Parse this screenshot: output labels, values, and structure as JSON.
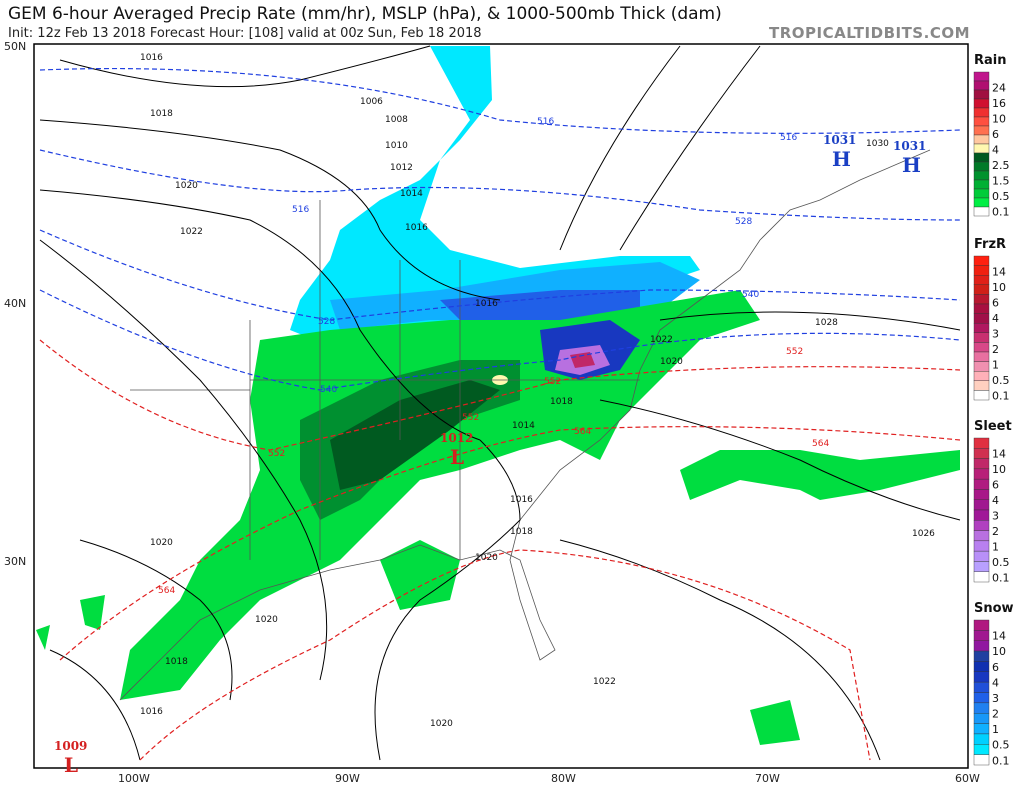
{
  "header": {
    "title": "GEM 6-hour Averaged Precip Rate (mm/hr), MSLP (hPa), & 1000-500mb Thick (dam)",
    "subtitle": "Init: 12z Feb 13 2018   Forecast Hour: [108]   valid at 00z Sun, Feb 18 2018",
    "brand": "TROPICALTIDBITS.COM"
  },
  "axes": {
    "lat": [
      "50N",
      "40N",
      "30N"
    ],
    "lon": [
      "100W",
      "90W",
      "80W",
      "70W",
      "60W"
    ]
  },
  "isobars": [
    "1016",
    "1018",
    "1020",
    "1022",
    "1006",
    "1008",
    "1010",
    "1012",
    "1014",
    "1016",
    "1016",
    "1018",
    "1016",
    "1018",
    "1020",
    "1020",
    "1022",
    "1020",
    "1028",
    "1030",
    "1026",
    "1022",
    "1020",
    "1016",
    "1018",
    "1020",
    "1014"
  ],
  "thickness": [
    "516",
    "516",
    "516",
    "528",
    "528",
    "540",
    "540",
    "552",
    "552",
    "564",
    "564",
    "564",
    "552",
    "552"
  ],
  "centers": [
    {
      "type": "H",
      "value": "1031"
    },
    {
      "type": "H",
      "value": "1031"
    },
    {
      "type": "L",
      "value": "1012"
    },
    {
      "type": "L",
      "value": "1009"
    }
  ],
  "colors": {
    "high": "#1a3fc4",
    "low": "#d42020",
    "isobar": "#000000",
    "thickness_cold": "#1f3fe0",
    "thickness_warm": "#e02020"
  },
  "legends": [
    {
      "title": "Rain",
      "labels": [
        "24",
        "16",
        "10",
        "6",
        "4",
        "2.5",
        "1.5",
        "0.5",
        "0.1"
      ],
      "colors": [
        "#c0168c",
        "#b01070",
        "#a01040",
        "#d01030",
        "#f03030",
        "#ff5040",
        "#ff7050",
        "#ffc8a0",
        "#fff8b0",
        "#005a20",
        "#007a28",
        "#00922e",
        "#00b034",
        "#00cc3a",
        "#00ee44",
        "#ffffff"
      ]
    },
    {
      "title": "FrzR",
      "labels": [
        "14",
        "10",
        "6",
        "4",
        "3",
        "2",
        "1",
        "0.5",
        "0.1"
      ],
      "colors": [
        "#ff2010",
        "#f02010",
        "#e02018",
        "#d02018",
        "#b81830",
        "#a81040",
        "#a01048",
        "#b01860",
        "#c83070",
        "#d84888",
        "#e870a0",
        "#f090b0",
        "#ffb0b8",
        "#ffd0c0",
        "#ffffff"
      ]
    },
    {
      "title": "Sleet",
      "labels": [
        "14",
        "10",
        "6",
        "4",
        "3",
        "2",
        "1",
        "0.5",
        "0.1"
      ],
      "colors": [
        "#e03040",
        "#d03050",
        "#c02868",
        "#b82078",
        "#b01c80",
        "#a81888",
        "#a01890",
        "#a01898",
        "#b040c0",
        "#b870e0",
        "#b880f0",
        "#b890f8",
        "#b8a0ff",
        "#ffffff"
      ]
    },
    {
      "title": "Snow",
      "labels": [
        "14",
        "10",
        "6",
        "4",
        "3",
        "2",
        "1",
        "0.5",
        "0.1"
      ],
      "colors": [
        "#b01880",
        "#a01890",
        "#9018a0",
        "#2040a0",
        "#1030b0",
        "#1838c0",
        "#2050d8",
        "#2060e8",
        "#2080f0",
        "#1898f8",
        "#10b0ff",
        "#00d0ff",
        "#00e8ff",
        "#ffffff"
      ]
    }
  ]
}
